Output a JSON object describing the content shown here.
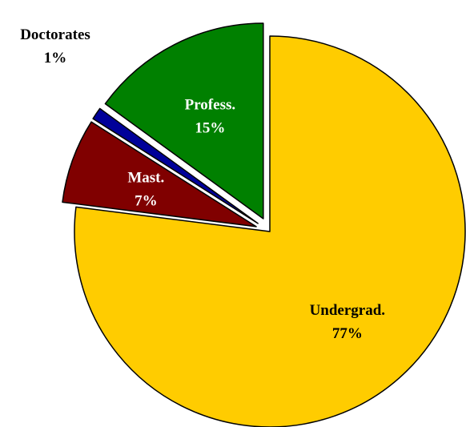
{
  "chart_data": {
    "type": "pie",
    "title": "",
    "start_angle_deg": 0,
    "direction": "clockwise",
    "slices": [
      {
        "name": "Undergrad.",
        "value": 77,
        "value_label": "77%",
        "color": "#FFCC00",
        "label_color": "#000000",
        "exploded": false
      },
      {
        "name": "Mast.",
        "value": 7,
        "value_label": "7%",
        "color": "#800000",
        "label_color": "#FFFFFF",
        "exploded": true
      },
      {
        "name": "Doctorates",
        "value": 1,
        "value_label": "1%",
        "color": "#000099",
        "label_color": "#000000",
        "exploded": true,
        "label_outside": true
      },
      {
        "name": "Profess.",
        "value": 15,
        "value_label": "15%",
        "color": "#008000",
        "label_color": "#FFFFFF",
        "exploded": true
      }
    ]
  }
}
